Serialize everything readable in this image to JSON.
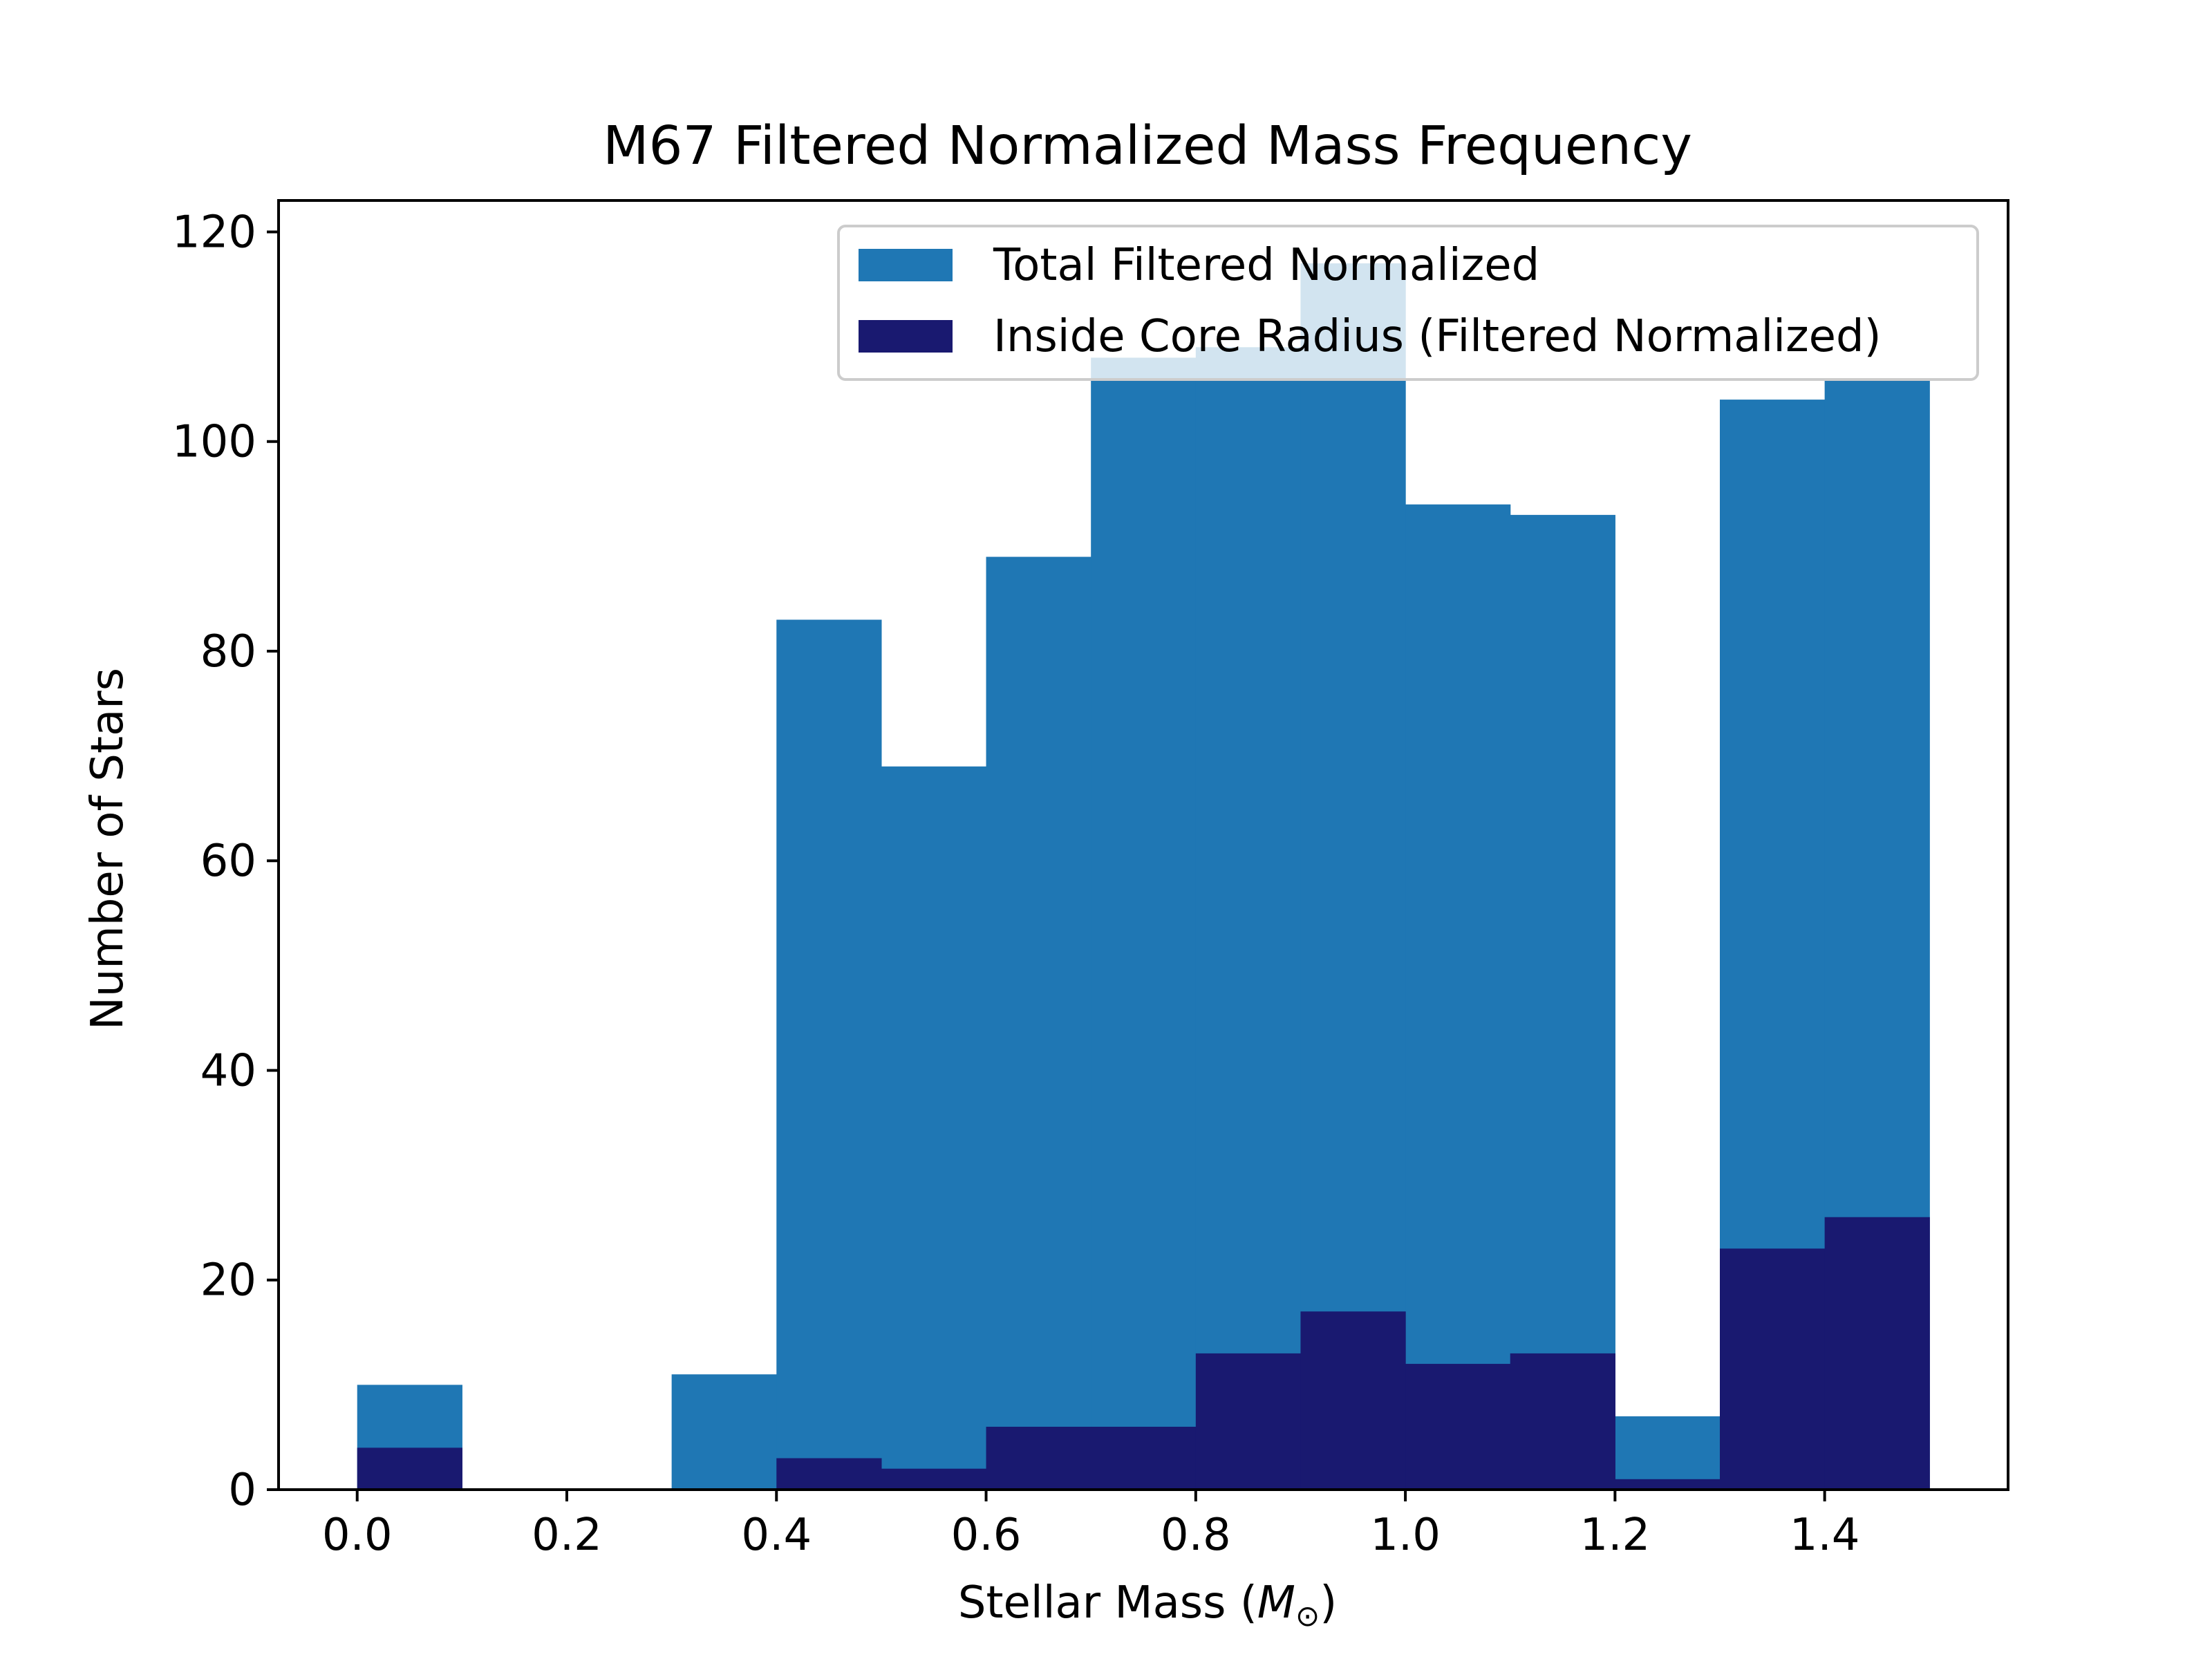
{
  "chart_data": {
    "type": "bar",
    "title": "M67 Filtered Normalized Mass Frequency",
    "xlabel_prefix": "Stellar Mass (",
    "xlabel_symbol": "M",
    "xlabel_subscript": "⊙",
    "xlabel_suffix": ")",
    "ylabel": "Number of Stars",
    "xlim": [
      -0.075,
      1.575
    ],
    "ylim": [
      0,
      123
    ],
    "bin_edges": [
      0.0,
      0.1,
      0.2,
      0.3,
      0.4,
      0.5,
      0.6,
      0.7,
      0.8,
      0.9,
      1.0,
      1.1,
      1.2,
      1.3,
      1.4,
      1.5
    ],
    "x_ticks": [
      "0.0",
      "0.2",
      "0.4",
      "0.6",
      "0.8",
      "1.0",
      "1.2",
      "1.4"
    ],
    "x_tick_values": [
      0.0,
      0.2,
      0.4,
      0.6,
      0.8,
      1.0,
      1.2,
      1.4
    ],
    "y_ticks": [
      "0",
      "20",
      "40",
      "60",
      "80",
      "100",
      "120"
    ],
    "y_tick_values": [
      0,
      20,
      40,
      60,
      80,
      100,
      120
    ],
    "legend_position": "top-right",
    "series": [
      {
        "name": "Total Filtered Normalized",
        "color": "#1f77b4",
        "values": [
          10,
          0,
          0,
          11,
          83,
          69,
          89,
          108,
          109,
          117,
          94,
          93,
          7,
          104,
          106
        ]
      },
      {
        "name": "Inside Core Radius (Filtered Normalized)",
        "color": "#191970",
        "values": [
          4,
          0,
          0,
          0,
          3,
          2,
          6,
          6,
          13,
          17,
          12,
          13,
          1,
          23,
          26
        ]
      }
    ]
  }
}
